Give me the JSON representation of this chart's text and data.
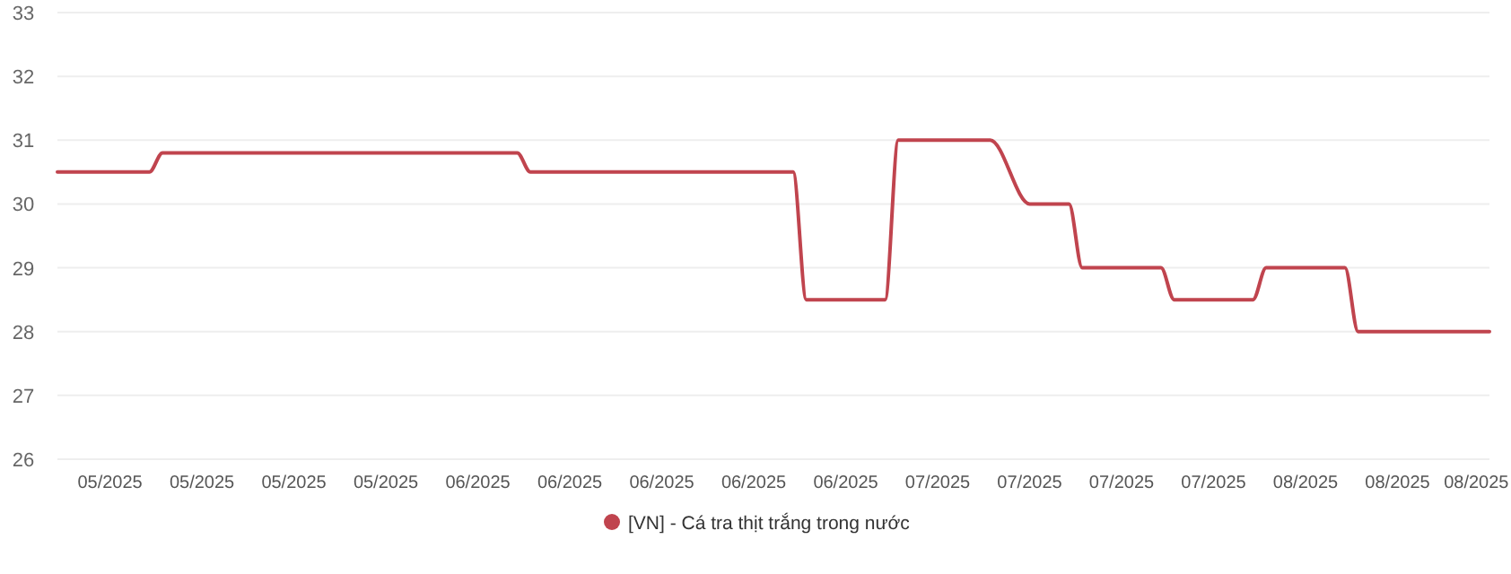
{
  "chart_data": {
    "type": "line",
    "x": [
      "2025-05-01",
      "2025-05-08",
      "2025-05-09",
      "2025-06-05",
      "2025-06-06",
      "2025-06-26",
      "2025-06-27",
      "2025-07-03",
      "2025-07-04",
      "2025-07-11",
      "2025-07-14",
      "2025-07-17",
      "2025-07-18",
      "2025-07-24",
      "2025-07-25",
      "2025-07-31",
      "2025-08-01",
      "2025-08-07",
      "2025-08-08",
      "2025-08-18"
    ],
    "series": [
      {
        "name": "[VN] - Cá tra thịt trắng trong nước",
        "color": "#c0444e",
        "values": [
          30.5,
          30.5,
          30.8,
          30.8,
          30.5,
          30.5,
          28.5,
          28.5,
          31,
          31,
          30,
          30,
          29,
          29,
          28.5,
          28.5,
          29,
          29,
          28,
          28
        ]
      }
    ],
    "xlim": [
      "2025-05-01",
      "2025-08-18"
    ],
    "xticks": [
      {
        "value": "2025-05-05",
        "label": "05/2025"
      },
      {
        "value": "2025-05-12",
        "label": "05/2025"
      },
      {
        "value": "2025-05-19",
        "label": "05/2025"
      },
      {
        "value": "2025-05-26",
        "label": "05/2025"
      },
      {
        "value": "2025-06-02",
        "label": "06/2025"
      },
      {
        "value": "2025-06-09",
        "label": "06/2025"
      },
      {
        "value": "2025-06-16",
        "label": "06/2025"
      },
      {
        "value": "2025-06-23",
        "label": "06/2025"
      },
      {
        "value": "2025-06-30",
        "label": "06/2025"
      },
      {
        "value": "2025-07-07",
        "label": "07/2025"
      },
      {
        "value": "2025-07-14",
        "label": "07/2025"
      },
      {
        "value": "2025-07-21",
        "label": "07/2025"
      },
      {
        "value": "2025-07-28",
        "label": "07/2025"
      },
      {
        "value": "2025-08-04",
        "label": "08/2025"
      },
      {
        "value": "2025-08-11",
        "label": "08/2025"
      },
      {
        "value": "2025-08-17",
        "label": "08/2025"
      }
    ],
    "ylim": [
      26,
      33
    ],
    "yticks": [
      26,
      27,
      28,
      29,
      30,
      31,
      32,
      33
    ],
    "grid": "y",
    "legend": "bottom",
    "marker": "none",
    "line_style": "solid"
  }
}
